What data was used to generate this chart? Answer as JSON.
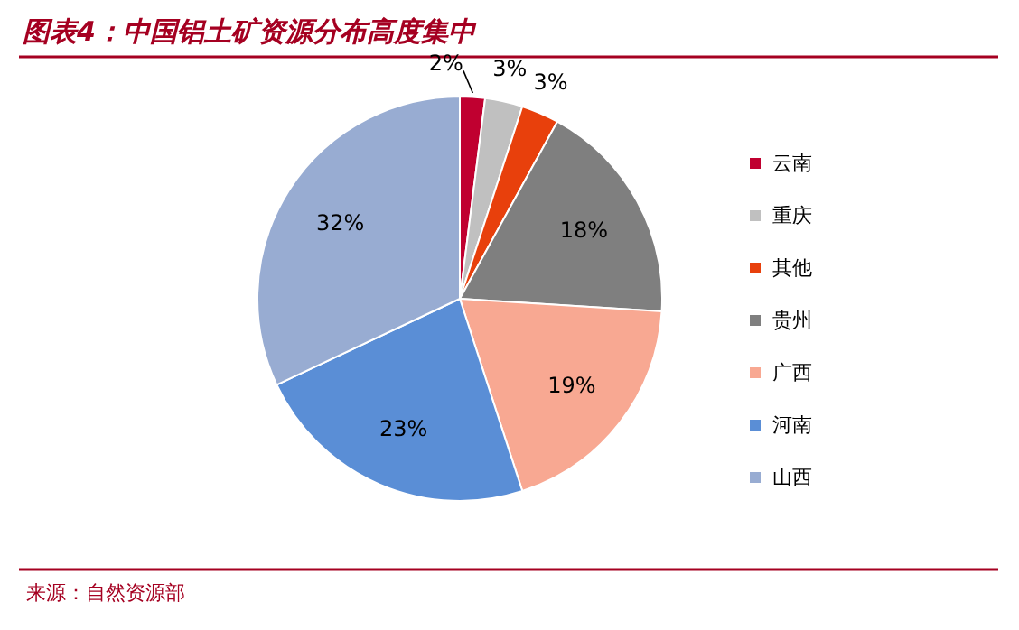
{
  "chart_data": {
    "type": "pie",
    "title": "图表4：中国铝土矿资源分布高度集中",
    "categories": [
      "云南",
      "重庆",
      "其他",
      "贵州",
      "广西",
      "河南",
      "山西"
    ],
    "values": [
      2,
      3,
      3,
      18,
      19,
      23,
      32
    ],
    "colors": [
      "#c00030",
      "#c0c0c0",
      "#e8400c",
      "#7f7f7f",
      "#f8a892",
      "#5a8ed6",
      "#98acd2"
    ],
    "value_labels": [
      "2%",
      "3%",
      "3%",
      "18%",
      "19%",
      "23%",
      "32%"
    ],
    "legend": "right",
    "annotations": [
      "来源：自然资源部"
    ]
  }
}
